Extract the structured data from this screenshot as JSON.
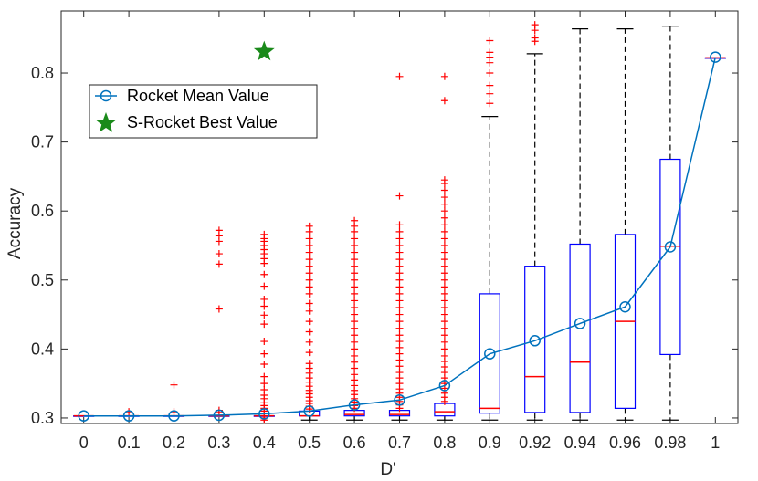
{
  "chart_data": {
    "type": "box",
    "title": "",
    "xlabel": "D'",
    "ylabel": "Accuracy",
    "ylim": [
      0.292,
      0.89
    ],
    "yticks": [
      0.3,
      0.4,
      0.5,
      0.6,
      0.7,
      0.8
    ],
    "categories": [
      "0",
      "0.1",
      "0.2",
      "0.3",
      "0.4",
      "0.5",
      "0.6",
      "0.7",
      "0.8",
      "0.9",
      "0.92",
      "0.94",
      "0.96",
      "0.98",
      "1"
    ],
    "boxes": [
      {
        "q1": 0.303,
        "median": 0.303,
        "q3": 0.303,
        "whisker_low": 0.303,
        "whisker_high": 0.303,
        "outliers": []
      },
      {
        "q1": 0.303,
        "median": 0.303,
        "q3": 0.303,
        "whisker_low": 0.303,
        "whisker_high": 0.303,
        "outliers": [
          0.309
        ]
      },
      {
        "q1": 0.303,
        "median": 0.303,
        "q3": 0.303,
        "whisker_low": 0.303,
        "whisker_high": 0.303,
        "outliers": [
          0.309,
          0.348
        ]
      },
      {
        "q1": 0.303,
        "median": 0.303,
        "q3": 0.303,
        "whisker_low": 0.303,
        "whisker_high": 0.303,
        "outliers": [
          0.308,
          0.311,
          0.458,
          0.523,
          0.538,
          0.556,
          0.564,
          0.572
        ]
      },
      {
        "q1": 0.303,
        "median": 0.303,
        "q3": 0.303,
        "whisker_low": 0.303,
        "whisker_high": 0.303,
        "outliers": [
          0.297,
          0.3,
          0.307,
          0.31,
          0.314,
          0.318,
          0.322,
          0.328,
          0.333,
          0.341,
          0.35,
          0.36,
          0.378,
          0.393,
          0.411,
          0.436,
          0.449,
          0.462,
          0.472,
          0.491,
          0.508,
          0.524,
          0.531,
          0.538,
          0.544,
          0.55,
          0.556,
          0.56,
          0.566
        ]
      },
      {
        "q1": 0.303,
        "median": 0.303,
        "q3": 0.31,
        "whisker_low": 0.297,
        "whisker_high": 0.31,
        "outliers": [
          0.313,
          0.317,
          0.321,
          0.325,
          0.33,
          0.335,
          0.34,
          0.346,
          0.352,
          0.358,
          0.365,
          0.372,
          0.379,
          0.395,
          0.41,
          0.425,
          0.44,
          0.455,
          0.466,
          0.48,
          0.49,
          0.5,
          0.51,
          0.52,
          0.53,
          0.54,
          0.55,
          0.56,
          0.57,
          0.578
        ]
      },
      {
        "q1": 0.303,
        "median": 0.305,
        "q3": 0.311,
        "whisker_low": 0.297,
        "whisker_high": 0.311,
        "outliers": [
          0.314,
          0.318,
          0.323,
          0.328,
          0.334,
          0.34,
          0.347,
          0.355,
          0.363,
          0.372,
          0.381,
          0.39,
          0.4,
          0.41,
          0.42,
          0.43,
          0.44,
          0.45,
          0.46,
          0.47,
          0.48,
          0.49,
          0.5,
          0.51,
          0.52,
          0.53,
          0.54,
          0.55,
          0.56,
          0.57,
          0.578,
          0.586
        ]
      },
      {
        "q1": 0.303,
        "median": 0.305,
        "q3": 0.311,
        "whisker_low": 0.297,
        "whisker_high": 0.311,
        "outliers": [
          0.314,
          0.319,
          0.324,
          0.33,
          0.336,
          0.342,
          0.35,
          0.358,
          0.366,
          0.375,
          0.384,
          0.393,
          0.402,
          0.411,
          0.42,
          0.43,
          0.44,
          0.45,
          0.46,
          0.47,
          0.48,
          0.49,
          0.5,
          0.51,
          0.52,
          0.53,
          0.54,
          0.55,
          0.56,
          0.57,
          0.58,
          0.622,
          0.795
        ]
      },
      {
        "q1": 0.303,
        "median": 0.309,
        "q3": 0.321,
        "whisker_low": 0.297,
        "whisker_high": 0.321,
        "outliers": [
          0.324,
          0.33,
          0.336,
          0.343,
          0.35,
          0.358,
          0.366,
          0.374,
          0.382,
          0.39,
          0.4,
          0.41,
          0.42,
          0.43,
          0.44,
          0.45,
          0.46,
          0.47,
          0.48,
          0.49,
          0.5,
          0.51,
          0.52,
          0.53,
          0.54,
          0.55,
          0.56,
          0.57,
          0.58,
          0.59,
          0.6,
          0.61,
          0.62,
          0.63,
          0.64,
          0.645,
          0.76,
          0.795
        ]
      },
      {
        "q1": 0.307,
        "median": 0.314,
        "q3": 0.48,
        "whisker_low": 0.297,
        "whisker_high": 0.737,
        "outliers": [
          0.756,
          0.77,
          0.782,
          0.8,
          0.815,
          0.823,
          0.83,
          0.847
        ]
      },
      {
        "q1": 0.308,
        "median": 0.36,
        "q3": 0.52,
        "whisker_low": 0.297,
        "whisker_high": 0.828,
        "outliers": [
          0.846,
          0.851,
          0.862,
          0.87
        ]
      },
      {
        "q1": 0.308,
        "median": 0.381,
        "q3": 0.552,
        "whisker_low": 0.297,
        "whisker_high": 0.864,
        "outliers": []
      },
      {
        "q1": 0.314,
        "median": 0.44,
        "q3": 0.566,
        "whisker_low": 0.297,
        "whisker_high": 0.864,
        "outliers": []
      },
      {
        "q1": 0.392,
        "median": 0.549,
        "q3": 0.675,
        "whisker_low": 0.297,
        "whisker_high": 0.868,
        "outliers": []
      },
      {
        "q1": 0.822,
        "median": 0.822,
        "q3": 0.822,
        "whisker_low": 0.822,
        "whisker_high": 0.822,
        "outliers": []
      }
    ],
    "series": [
      {
        "name": "Rocket Mean Value",
        "type": "line",
        "marker": "circle",
        "values": [
          0.303,
          0.303,
          0.303,
          0.304,
          0.306,
          0.31,
          0.319,
          0.326,
          0.347,
          0.393,
          0.412,
          0.437,
          0.461,
          0.548,
          0.823
        ]
      },
      {
        "name": "S-Rocket Best Value",
        "type": "point",
        "marker": "star",
        "x": "0.4",
        "y": 0.831
      }
    ],
    "legend": {
      "position": "upper-left",
      "entries": [
        "Rocket Mean Value",
        "S-Rocket Best Value"
      ]
    },
    "colors": {
      "box": "#0000ff",
      "median": "#ff0000",
      "outlier": "#ff0000",
      "whisker": "#000000",
      "mean_line": "#0072bd",
      "star": "#1a8a1a",
      "axis": "#262626"
    }
  }
}
